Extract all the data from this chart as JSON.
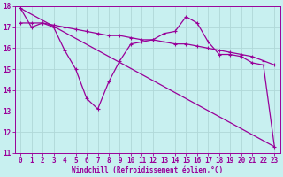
{
  "xlabel": "Windchill (Refroidissement éolien,°C)",
  "background_color": "#c8f0f0",
  "line_color": "#990099",
  "grid_color": "#b0d8d8",
  "xlim": [
    -0.5,
    23.5
  ],
  "ylim": [
    11,
    18
  ],
  "yticks": [
    11,
    12,
    13,
    14,
    15,
    16,
    17,
    18
  ],
  "xticks": [
    0,
    1,
    2,
    3,
    4,
    5,
    6,
    7,
    8,
    9,
    10,
    11,
    12,
    13,
    14,
    15,
    16,
    17,
    18,
    19,
    20,
    21,
    22,
    23
  ],
  "line_straight": {
    "x": [
      0,
      23
    ],
    "y": [
      17.9,
      11.3
    ]
  },
  "line_jagged": {
    "x": [
      0,
      1,
      2,
      3,
      4,
      5,
      6,
      7,
      8,
      9,
      10,
      11,
      12,
      13,
      14,
      15,
      16,
      17,
      18,
      19,
      20,
      21,
      22,
      23
    ],
    "y": [
      17.9,
      17.0,
      17.2,
      17.0,
      15.9,
      15.0,
      13.6,
      13.1,
      14.4,
      15.4,
      16.2,
      16.3,
      16.4,
      16.7,
      16.8,
      17.5,
      17.2,
      16.3,
      15.7,
      15.7,
      15.6,
      15.3,
      15.2,
      11.3
    ]
  },
  "line_smooth": {
    "x": [
      0,
      1,
      2,
      3,
      4,
      5,
      6,
      7,
      8,
      9,
      10,
      11,
      12,
      13,
      14,
      15,
      16,
      17,
      18,
      19,
      20,
      21,
      22,
      23
    ],
    "y": [
      17.2,
      17.2,
      17.2,
      17.1,
      17.0,
      16.9,
      16.8,
      16.7,
      16.6,
      16.6,
      16.5,
      16.4,
      16.4,
      16.3,
      16.2,
      16.2,
      16.1,
      16.0,
      15.9,
      15.8,
      15.7,
      15.6,
      15.4,
      15.2
    ]
  }
}
